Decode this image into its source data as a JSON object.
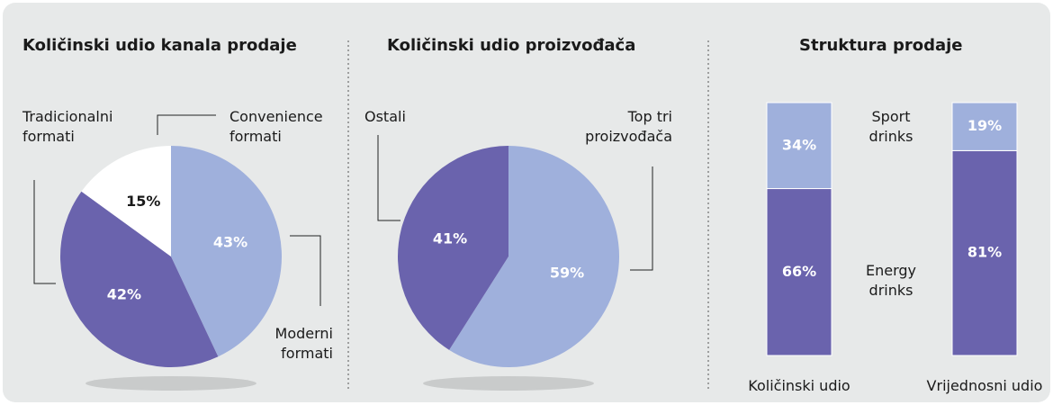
{
  "chart_data": [
    {
      "type": "pie",
      "title": "Količinski udio kanala prodaje",
      "categories": [
        "Moderni formati",
        "Tradicionalni formati",
        "Convenience formati"
      ],
      "values": [
        43,
        42,
        15
      ],
      "value_labels": [
        "43%",
        "42%",
        "15%"
      ],
      "colors": [
        "#9fb0dc",
        "#6a63ad",
        "#ffffff"
      ]
    },
    {
      "type": "pie",
      "title": "Količinski udio proizvođača",
      "categories": [
        "Top tri proizvođača",
        "Ostali"
      ],
      "values": [
        59,
        41
      ],
      "value_labels": [
        "59%",
        "41%"
      ],
      "colors": [
        "#9fb0dc",
        "#6a63ad"
      ]
    },
    {
      "type": "stacked_bar",
      "title": "Struktura prodaje",
      "categories": [
        "Količinski udio",
        "Vrijednosni udio"
      ],
      "series": [
        {
          "name": "Energy drinks",
          "color": "#6a63ad",
          "values": [
            66,
            81
          ],
          "value_labels": [
            "66%",
            "81%"
          ]
        },
        {
          "name": "Sport drinks",
          "color": "#9fb0dc",
          "values": [
            34,
            19
          ],
          "value_labels": [
            "34%",
            "19%"
          ]
        }
      ]
    }
  ]
}
